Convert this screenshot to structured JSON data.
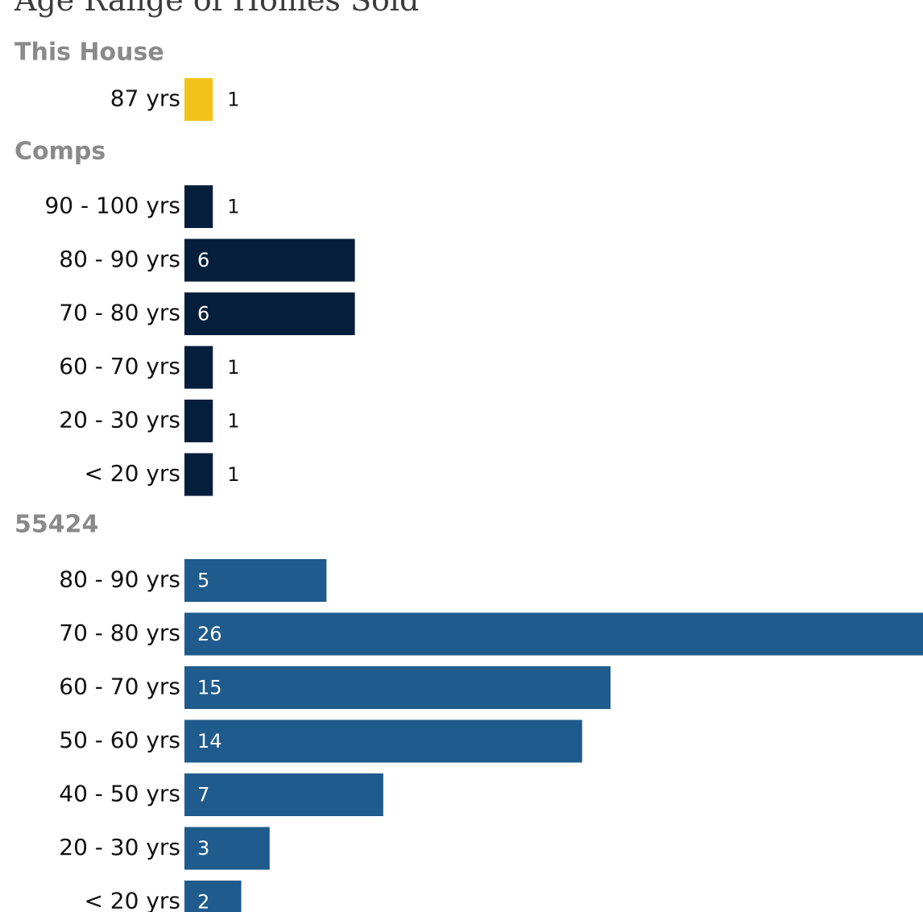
{
  "chart_data": {
    "type": "bar",
    "orientation": "horizontal",
    "title": "Age Range of Homes Sold",
    "unit_label": "yrs",
    "x_range": [
      0,
      26
    ],
    "grid": false,
    "groups": [
      {
        "name": "This House",
        "color": "#f2c31a",
        "categories": [
          "87 yrs"
        ],
        "values": [
          1
        ]
      },
      {
        "name": "Comps",
        "color": "#041e3c",
        "categories": [
          "90 - 100 yrs",
          "80 - 90 yrs",
          "70 - 80 yrs",
          "60 - 70 yrs",
          "20 - 30 yrs",
          "< 20 yrs"
        ],
        "values": [
          1,
          6,
          6,
          1,
          1,
          1
        ]
      },
      {
        "name": "55424",
        "color": "#1f5b8c",
        "categories": [
          "80 - 90 yrs",
          "70 - 80 yrs",
          "60 - 70 yrs",
          "50 - 60 yrs",
          "40 - 50 yrs",
          "20 - 30 yrs",
          "< 20 yrs"
        ],
        "values": [
          5,
          26,
          15,
          14,
          7,
          3,
          2
        ]
      }
    ]
  }
}
